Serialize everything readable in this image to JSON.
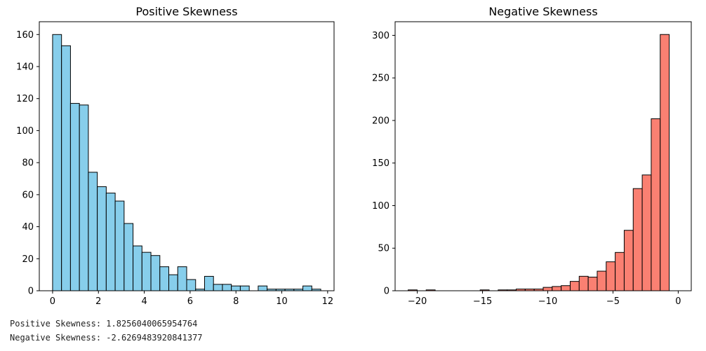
{
  "colors": {
    "positive": "#87ceeb",
    "negative": "#fa8072",
    "edge": "#000000"
  },
  "chart_data": [
    {
      "type": "bar",
      "title": "Positive Skewness",
      "xlabel": "",
      "ylabel": "",
      "xlim": [
        -0.58,
        12.28
      ],
      "ylim": [
        0,
        168
      ],
      "xticks": [
        0,
        2,
        4,
        6,
        8,
        10,
        12
      ],
      "xtick_labels": [
        "0",
        "2",
        "4",
        "6",
        "8",
        "10",
        "12"
      ],
      "yticks": [
        0,
        20,
        40,
        60,
        80,
        100,
        120,
        140,
        160
      ],
      "ytick_labels": [
        "0",
        "20",
        "40",
        "60",
        "80",
        "100",
        "120",
        "140",
        "160"
      ],
      "bin_start": 0.0,
      "bin_width": 0.39,
      "values": [
        160,
        153,
        117,
        116,
        74,
        65,
        61,
        56,
        42,
        28,
        24,
        22,
        15,
        10,
        15,
        7,
        1,
        9,
        4,
        4,
        3,
        3,
        0,
        3,
        1,
        1,
        1,
        1,
        3,
        1
      ],
      "grid": false
    },
    {
      "type": "bar",
      "title": "Negative Skewness",
      "xlabel": "",
      "ylabel": "",
      "xlim": [
        -21.7,
        1.0
      ],
      "ylim": [
        0,
        316
      ],
      "xticks": [
        -20,
        -15,
        -10,
        -5,
        0
      ],
      "xtick_labels": [
        "−20",
        "−15",
        "−10",
        "−5",
        "0"
      ],
      "yticks": [
        0,
        50,
        100,
        150,
        200,
        250,
        300
      ],
      "ytick_labels": [
        "0",
        "50",
        "100",
        "150",
        "200",
        "250",
        "300"
      ],
      "bin_start": -20.7,
      "bin_width": 0.69,
      "values": [
        1,
        0,
        1,
        0,
        0,
        0,
        0,
        0,
        1,
        0,
        1,
        1,
        2,
        2,
        2,
        4,
        5,
        6,
        11,
        17,
        16,
        23,
        34,
        45,
        71,
        120,
        136,
        202,
        301,
        0
      ],
      "grid": false
    }
  ],
  "output": {
    "line1": "Positive Skewness: 1.8256040065954764",
    "line2": "Negative Skewness: -2.6269483920841377"
  }
}
